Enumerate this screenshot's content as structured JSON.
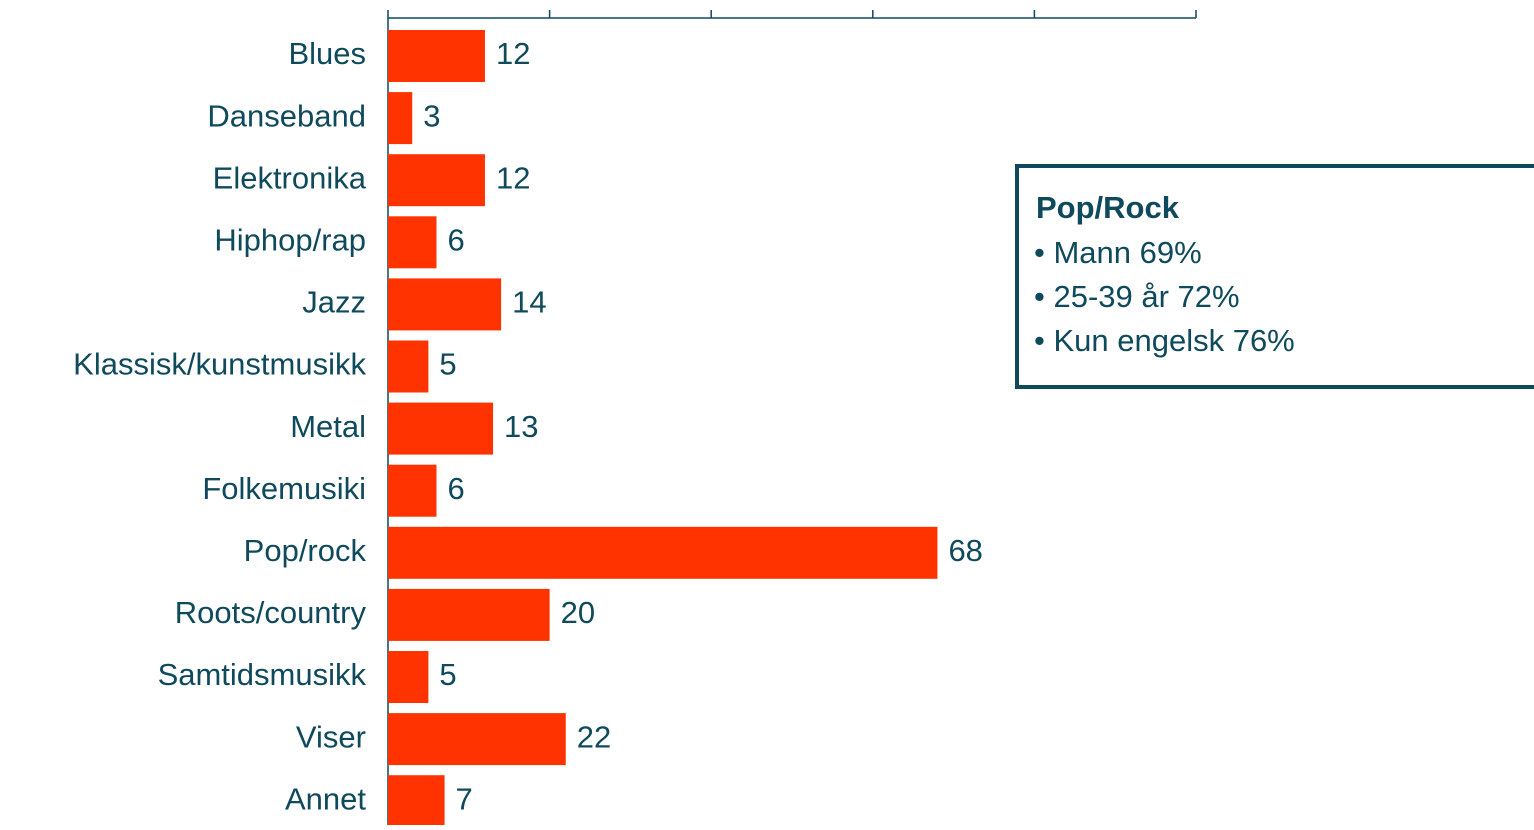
{
  "chart_data": {
    "type": "bar",
    "orientation": "horizontal",
    "categories": [
      "Blues",
      "Danseband",
      "Elektronika",
      "Hiphop/rap",
      "Jazz",
      "Klassisk/kunstmusikk",
      "Metal",
      "Folkemusiki",
      "Pop/rock",
      "Roots/country",
      "Samtidsmusikk",
      "Viser",
      "Annet"
    ],
    "values": [
      12,
      3,
      12,
      6,
      14,
      5,
      13,
      6,
      68,
      20,
      5,
      22,
      7
    ],
    "color": "#ff3300",
    "xlim": [
      0,
      100
    ],
    "xticks": [
      0,
      20,
      40,
      60,
      80,
      100
    ],
    "annotation": {
      "title": "Pop/Rock",
      "lines": [
        "• Mann 69%",
        "• 25-39 år 72%",
        "• Kun engelsk 76%"
      ]
    }
  }
}
